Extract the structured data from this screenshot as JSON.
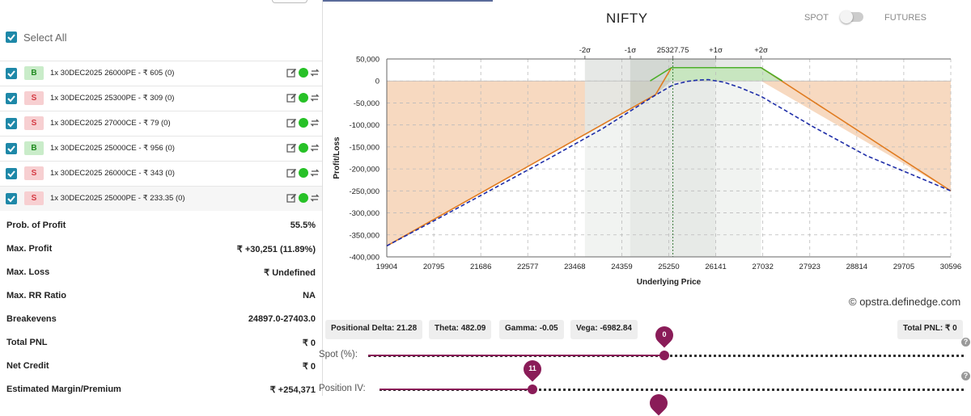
{
  "left": {
    "select_all": "Select All",
    "legs": [
      {
        "side": "B",
        "text": "1x 30DEC2025 26000PE - ₹ 605 (0)"
      },
      {
        "side": "S",
        "text": "1x 30DEC2025 25300PE - ₹ 309 (0)"
      },
      {
        "side": "S",
        "text": "1x 30DEC2025 27000CE - ₹ 79 (0)"
      },
      {
        "side": "B",
        "text": "1x 30DEC2025 25000CE - ₹ 956 (0)"
      },
      {
        "side": "S",
        "text": "1x 30DEC2025 26000CE - ₹ 343 (0)"
      },
      {
        "side": "S",
        "text": "1x 30DEC2025 25000PE - ₹ 233.35 (0)"
      }
    ],
    "stats": [
      {
        "label": "Prob. of Profit",
        "value": "55.5%"
      },
      {
        "label": "Max. Profit",
        "value": "₹ +30,251 (11.89%)"
      },
      {
        "label": "Max. Loss",
        "value": "₹ Undefined"
      },
      {
        "label": "Max. RR Ratio",
        "value": "NA"
      },
      {
        "label": "Breakevens",
        "value": "24897.0-27403.0"
      },
      {
        "label": "Total PNL",
        "value": "₹ 0"
      },
      {
        "label": "Net Credit",
        "value": "₹ 0"
      },
      {
        "label": "Estimated Margin/Premium",
        "value": "₹ +254,371"
      }
    ]
  },
  "header": {
    "title": "NIFTY",
    "spot_label": "SPOT",
    "futures_label": "FUTURES"
  },
  "colors": {
    "profit_zone": "#c8e6c0",
    "loss_zone": "#f7d9c0",
    "sd1_band": "#e2e6e2",
    "sd2_band": "#eef0ee",
    "expiry_line": "#e07b20",
    "max_profit_line": "#4caf2a",
    "target_line": "#1f2ea8",
    "accent": "#8a1c58"
  },
  "chart_data": {
    "type": "line",
    "xlabel": "Underlying Price",
    "ylabel": "Profit/Loss",
    "x_ticks": [
      19904,
      20795,
      21686,
      22577,
      23468,
      24359,
      25250,
      26141,
      27032,
      27923,
      28814,
      29705,
      30596
    ],
    "y_ticks": [
      50000,
      0,
      -50000,
      -100000,
      -150000,
      -200000,
      -250000,
      -300000,
      -350000,
      -400000
    ],
    "y_tick_labels": [
      "50,000",
      "0",
      "-50,000",
      "-100,000",
      "-150,000",
      "-200,000",
      "-250,000",
      "-300,000",
      "-350,000",
      "-400,000"
    ],
    "xlim": [
      19904,
      30596
    ],
    "ylim": [
      -400000,
      50000
    ],
    "sigma_labels": [
      {
        "label": "-2σ",
        "x": 23660
      },
      {
        "label": "-1σ",
        "x": 24520
      },
      {
        "label": "25327.75",
        "x": 25327.75
      },
      {
        "label": "+1σ",
        "x": 26140
      },
      {
        "label": "+2σ",
        "x": 27000
      }
    ],
    "series": [
      {
        "x": [
          19904,
          25000,
          25300,
          26000,
          27000,
          30596
        ],
        "y": [
          -375000,
          -31000,
          30251,
          30251,
          30251,
          -250000
        ]
      },
      {
        "x": [
          19904,
          21000,
          22000,
          23000,
          24000,
          24500,
          25000,
          25327.75,
          25600,
          25800,
          26000,
          26300,
          26600,
          27000,
          27500,
          28000,
          29000,
          30000,
          30596
        ],
        "y": [
          -375000,
          -305000,
          -240000,
          -175000,
          -108000,
          -70000,
          -32000,
          -9000,
          -1000,
          2000,
          3000,
          -3000,
          -15000,
          -35000,
          -70000,
          -105000,
          -170000,
          -220000,
          -250000
        ]
      }
    ]
  },
  "greeks": {
    "delta": "Positional Delta: 21.28",
    "theta": "Theta: 482.09",
    "gamma": "Gamma: -0.05",
    "vega": "Vega: -6982.84",
    "total_pnl": "Total PNL: ₹ 0"
  },
  "copyright": "© opstra.definedge.com",
  "sliders": {
    "spot_label": "Spot (%):",
    "spot_value": "0",
    "iv_label": "Position IV:",
    "iv_value": "11",
    "help": "?"
  }
}
